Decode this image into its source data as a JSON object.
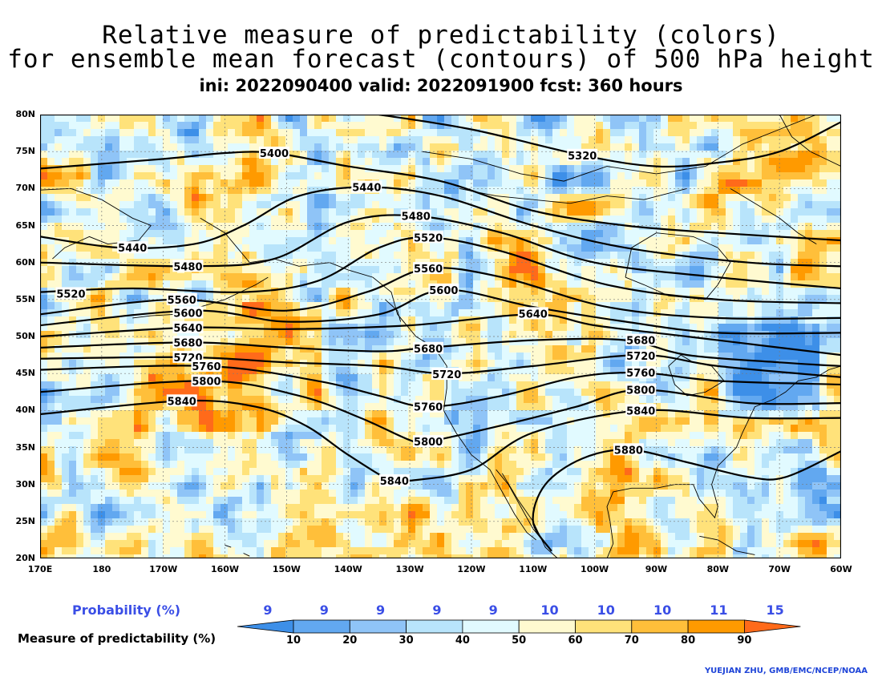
{
  "title": {
    "line1": "Relative measure of predictability (colors)",
    "line2": "for ensemble mean forecast (contours) of 500 hPa height",
    "line3": "ini: 2022090400 valid: 2022091900 fcst: 360 hours"
  },
  "map": {
    "lat_labels": [
      "80N",
      "75N",
      "70N",
      "65N",
      "60N",
      "55N",
      "50N",
      "45N",
      "40N",
      "35N",
      "30N",
      "25N",
      "20N"
    ],
    "lon_labels": [
      "170E",
      "180",
      "170W",
      "160W",
      "150W",
      "140W",
      "130W",
      "120W",
      "110W",
      "100W",
      "90W",
      "80W",
      "70W",
      "60W"
    ],
    "lat_range": [
      20,
      80
    ],
    "lon_range": [
      170,
      300
    ],
    "grid": true,
    "contours": [
      {
        "value": 5320,
        "label": "5320",
        "label_lon": 258,
        "label_lat": 74.5,
        "points": [
          [
            225,
            80
          ],
          [
            240,
            78
          ],
          [
            258,
            74.5
          ],
          [
            270,
            73
          ],
          [
            280,
            73.5
          ],
          [
            290,
            75
          ],
          [
            300,
            79
          ]
        ]
      },
      {
        "value": 5400,
        "label": "5400",
        "label_lon": 208,
        "label_lat": 74.8,
        "points": [
          [
            170,
            72.7
          ],
          [
            190,
            74
          ],
          [
            200,
            74.8
          ],
          [
            208,
            74.8
          ],
          [
            220,
            73
          ],
          [
            235,
            71
          ],
          [
            250,
            67
          ],
          [
            265,
            65
          ],
          [
            280,
            64
          ],
          [
            300,
            63
          ]
        ]
      },
      {
        "value": 5440,
        "label": "5440",
        "label_lon": 223,
        "label_lat": 70.2,
        "points": [
          [
            170,
            63.5
          ],
          [
            183,
            62
          ],
          [
            195,
            62.5
          ],
          [
            203,
            65
          ],
          [
            212,
            69
          ],
          [
            223,
            70.2
          ],
          [
            235,
            69
          ],
          [
            250,
            65
          ],
          [
            265,
            62
          ],
          [
            285,
            60
          ],
          [
            300,
            59.5
          ]
        ]
      },
      {
        "value": 5440,
        "label": "5440",
        "label_lon": 185,
        "label_lat": 62,
        "points": []
      },
      {
        "value": 5480,
        "label": "5480",
        "label_lon": 231,
        "label_lat": 66.3,
        "points": [
          [
            170,
            60
          ],
          [
            195,
            59.5
          ],
          [
            208,
            60.5
          ],
          [
            220,
            65.5
          ],
          [
            231,
            66.3
          ],
          [
            245,
            64
          ],
          [
            260,
            60
          ],
          [
            280,
            58
          ],
          [
            300,
            56.5
          ]
        ]
      },
      {
        "value": 5480,
        "label": "5480",
        "label_lon": 194,
        "label_lat": 59.5,
        "points": []
      },
      {
        "value": 5520,
        "label": "5520",
        "label_lon": 233,
        "label_lat": 63.4,
        "points": [
          [
            170,
            56
          ],
          [
            185,
            56.5
          ],
          [
            203,
            56
          ],
          [
            215,
            57.5
          ],
          [
            225,
            62
          ],
          [
            233,
            63.4
          ],
          [
            245,
            61.5
          ],
          [
            262,
            57
          ],
          [
            280,
            55
          ],
          [
            300,
            54.5
          ]
        ]
      },
      {
        "value": 5520,
        "label": "5520",
        "label_lon": 175,
        "label_lat": 55.8,
        "points": []
      },
      {
        "value": 5560,
        "label": "5560",
        "label_lon": 233,
        "label_lat": 59.2,
        "points": [
          [
            170,
            53
          ],
          [
            192,
            55
          ],
          [
            210,
            53.5
          ],
          [
            223,
            56
          ],
          [
            233,
            59.2
          ],
          [
            245,
            58
          ],
          [
            262,
            54
          ],
          [
            280,
            52.5
          ],
          [
            300,
            52.5
          ]
        ]
      },
      {
        "value": 5560,
        "label": "5560",
        "label_lon": 193,
        "label_lat": 55
      },
      {
        "value": 5600,
        "label": "5600",
        "label_lon": 235.5,
        "label_lat": 56.3,
        "points": [
          [
            170,
            51.5
          ],
          [
            195,
            53.5
          ],
          [
            210,
            52
          ],
          [
            225,
            53
          ],
          [
            235.5,
            56.3
          ],
          [
            250,
            54
          ],
          [
            265,
            52
          ],
          [
            280,
            50.5
          ],
          [
            300,
            50.5
          ]
        ]
      },
      {
        "value": 5600,
        "label": "5600",
        "label_lon": 194,
        "label_lat": 53.2
      },
      {
        "value": 5640,
        "label": "5640",
        "label_lon": 194,
        "label_lat": 51.2,
        "points": [
          [
            170,
            50
          ],
          [
            194,
            51.2
          ],
          [
            210,
            51
          ],
          [
            230,
            51.5
          ],
          [
            250,
            53
          ],
          [
            260,
            51.5
          ],
          [
            275,
            50
          ],
          [
            290,
            48.5
          ],
          [
            300,
            47.5
          ]
        ]
      },
      {
        "value": 5640,
        "label": "5640",
        "label_lon": 250,
        "label_lat": 53.1
      },
      {
        "value": 5680,
        "label": "5680",
        "label_lon": 194,
        "label_lat": 49.2,
        "points": [
          [
            170,
            48.5
          ],
          [
            194,
            49.2
          ],
          [
            210,
            48.5
          ],
          [
            225,
            48
          ],
          [
            233,
            48.5
          ],
          [
            250,
            49.5
          ],
          [
            265,
            49.5
          ],
          [
            275,
            47.5
          ],
          [
            290,
            46.5
          ],
          [
            300,
            46
          ]
        ]
      },
      {
        "value": 5680,
        "label": "5680",
        "label_lon": 233,
        "label_lat": 48.4
      },
      {
        "value": 5680,
        "label": "5680",
        "label_lon": 267.5,
        "label_lat": 49.5
      },
      {
        "value": 5720,
        "label": "5720",
        "label_lon": 194,
        "label_lat": 47.2,
        "points": [
          [
            170,
            47
          ],
          [
            194,
            47.2
          ],
          [
            210,
            46.5
          ],
          [
            225,
            46
          ],
          [
            236,
            45
          ],
          [
            250,
            46
          ],
          [
            267.5,
            47.5
          ],
          [
            280,
            46
          ],
          [
            300,
            44.5
          ]
        ]
      },
      {
        "value": 5720,
        "label": "5720",
        "label_lon": 236,
        "label_lat": 44.9
      },
      {
        "value": 5720,
        "label": "5720",
        "label_lon": 267.5,
        "label_lat": 47.4
      },
      {
        "value": 5760,
        "label": "5760",
        "label_lon": 197,
        "label_lat": 46,
        "points": [
          [
            170,
            45.5
          ],
          [
            197,
            46
          ],
          [
            215,
            44
          ],
          [
            225,
            42
          ],
          [
            233,
            40.5
          ],
          [
            245,
            42
          ],
          [
            257,
            44.5
          ],
          [
            267.5,
            45.1
          ],
          [
            280,
            44
          ],
          [
            300,
            43.5
          ]
        ]
      },
      {
        "value": 5760,
        "label": "5760",
        "label_lon": 233,
        "label_lat": 40.5
      },
      {
        "value": 5760,
        "label": "5760",
        "label_lon": 267.5,
        "label_lat": 45.1
      },
      {
        "value": 5800,
        "label": "5800",
        "label_lon": 197,
        "label_lat": 44,
        "points": [
          [
            170,
            42.5
          ],
          [
            197,
            44
          ],
          [
            212,
            42
          ],
          [
            222,
            39
          ],
          [
            230,
            36
          ],
          [
            233,
            35.8
          ],
          [
            245,
            38
          ],
          [
            257,
            40.5
          ],
          [
            267.5,
            42.8
          ],
          [
            285,
            41
          ],
          [
            300,
            41
          ]
        ]
      },
      {
        "value": 5800,
        "label": "5800",
        "label_lon": 233,
        "label_lat": 35.8
      },
      {
        "value": 5800,
        "label": "5800",
        "label_lon": 267.5,
        "label_lat": 42.8
      },
      {
        "value": 5840,
        "label": "5840",
        "label_lon": 193,
        "label_lat": 41.3,
        "points": [
          [
            170,
            39.5
          ],
          [
            193,
            41.3
          ],
          [
            205,
            40.5
          ],
          [
            213,
            38
          ],
          [
            220,
            34
          ],
          [
            227,
            30.5
          ],
          [
            230,
            30.5
          ],
          [
            240,
            32
          ],
          [
            250,
            37
          ],
          [
            267.5,
            40
          ],
          [
            285,
            39
          ],
          [
            300,
            39
          ]
        ]
      },
      {
        "value": 5840,
        "label": "5840",
        "label_lon": 227.5,
        "label_lat": 30.5
      },
      {
        "value": 5840,
        "label": "5840",
        "label_lon": 267.5,
        "label_lat": 40
      },
      {
        "value": 5880,
        "label": "5880",
        "label_lon": 265.5,
        "label_lat": 34.7,
        "points": [
          [
            253,
            21
          ],
          [
            250,
            25
          ],
          [
            252,
            30
          ],
          [
            258,
            33.5
          ],
          [
            265.5,
            34.7
          ],
          [
            275,
            33
          ],
          [
            285,
            31
          ],
          [
            291,
            31
          ],
          [
            300,
            34.5
          ]
        ]
      }
    ]
  },
  "legend": {
    "prob_title": "Probability (%)",
    "measure_title": "Measure of predictability (%)",
    "prob_values": [
      "9",
      "9",
      "9",
      "9",
      "9",
      "10",
      "10",
      "10",
      "11",
      "15"
    ],
    "bar_labels": [
      "10",
      "20",
      "30",
      "40",
      "50",
      "60",
      "70",
      "80",
      "90"
    ],
    "colors": [
      "#3d8fe8",
      "#62a8f0",
      "#8fc4f7",
      "#b8e4fb",
      "#e1faff",
      "#fffad0",
      "#ffe27a",
      "#ffbf3a",
      "#ff9a00",
      "#ff6a1a"
    ]
  },
  "credit": "YUEJIAN ZHU, GMB/EMC/NCEP/NOAA"
}
